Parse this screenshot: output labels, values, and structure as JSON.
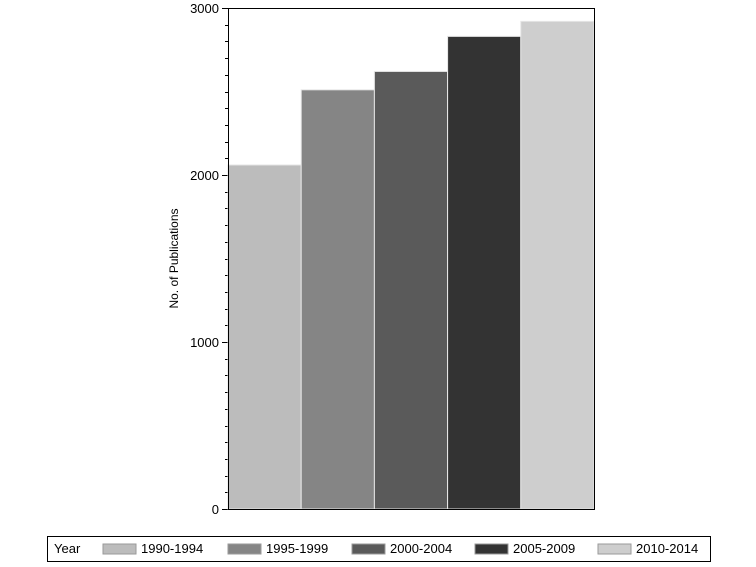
{
  "chart_data": {
    "type": "bar",
    "title": "",
    "xlabel": "",
    "ylabel": "No. of Publications",
    "ylim": [
      0,
      3000
    ],
    "y_major_ticks": [
      0,
      1000,
      2000,
      3000
    ],
    "y_minor_step": 100,
    "grid": false,
    "legend": {
      "title": "Year",
      "placement": "bottom"
    },
    "categories": [
      "1990-1994",
      "1995-1999",
      "2000-2004",
      "2005-2009",
      "2010-2014"
    ],
    "values": [
      2060,
      2510,
      2620,
      2830,
      2920
    ],
    "colors": [
      "#bcbcbc",
      "#858585",
      "#5a5a5a",
      "#333333",
      "#cecece"
    ]
  }
}
